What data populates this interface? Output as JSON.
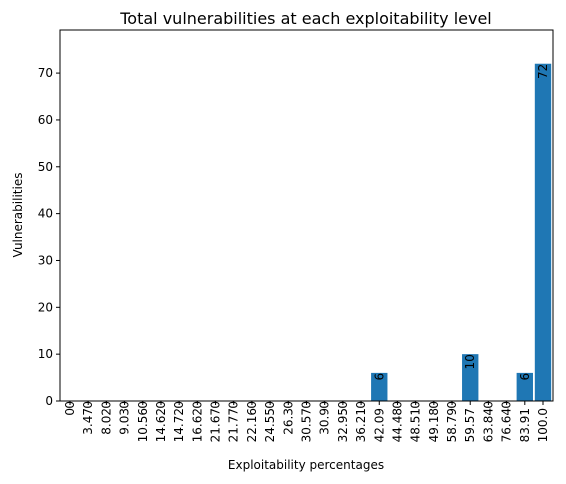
{
  "chart_data": {
    "type": "bar",
    "title": "Total vulnerabilities at each exploitability level",
    "xlabel": "Exploitability percentages",
    "ylabel": "Vulnerabilities",
    "ylim": [
      0,
      79.2
    ],
    "yticks": [
      0,
      10,
      20,
      30,
      40,
      50,
      60,
      70
    ],
    "grid": false,
    "bar_color": "#1f77b4",
    "categories": [
      "0",
      "3.47",
      "8.02",
      "9.03",
      "10.56",
      "14.62",
      "14.72",
      "16.62",
      "21.67",
      "21.77",
      "22.16",
      "24.55",
      "26.3",
      "30.57",
      "30.9",
      "32.95",
      "36.21",
      "42.09",
      "44.48",
      "48.51",
      "49.18",
      "58.79",
      "59.57",
      "63.84",
      "76.64",
      "83.91",
      "100.0"
    ],
    "values": [
      0,
      0,
      0,
      0,
      0,
      0,
      0,
      0,
      0,
      0,
      0,
      0,
      0,
      0,
      0,
      0,
      0,
      6,
      0,
      0,
      0,
      0,
      10,
      0,
      0,
      6,
      72
    ],
    "data_labels": [
      "0",
      "0",
      "0",
      "0",
      "0",
      "0",
      "0",
      "0",
      "0",
      "0",
      "0",
      "0",
      "0",
      "0",
      "0",
      "0",
      "0",
      "6",
      "0",
      "0",
      "0",
      "0",
      "10",
      "0",
      "0",
      "6",
      "72"
    ]
  }
}
